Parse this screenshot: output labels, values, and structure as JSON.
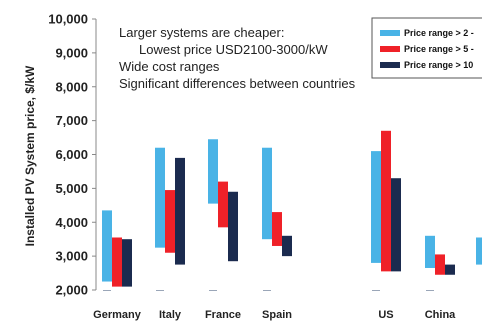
{
  "chart_data": {
    "type": "bar",
    "subtype": "floating-range",
    "ylabel": "Installed PV System price, $/kW",
    "yticks": [
      "2,000",
      "3,000",
      "4,000",
      "5,000",
      "6,000",
      "7,000",
      "8,000",
      "9,000",
      "10,000"
    ],
    "ylim": [
      2000,
      10000
    ],
    "grid": false,
    "legend_position": "top-right",
    "categories": [
      "Germany",
      "Italy",
      "France",
      "Spain",
      "US",
      "China"
    ],
    "series": [
      {
        "name": "Price range > 2 -",
        "color": "#49b3e6",
        "values": [
          {
            "category": "Germany",
            "low": 2250,
            "high": 4350
          },
          {
            "category": "Italy",
            "low": 3250,
            "high": 6200
          },
          {
            "category": "France",
            "low": 4550,
            "high": 6450
          },
          {
            "category": "Spain",
            "low": 3500,
            "high": 6200
          },
          {
            "category": "US",
            "low": 2800,
            "high": 6100
          },
          {
            "category": "China",
            "low": 2650,
            "high": 3600
          }
        ]
      },
      {
        "name": "Price range > 5 -",
        "color": "#ef2128",
        "values": [
          {
            "category": "Germany",
            "low": 2100,
            "high": 3550
          },
          {
            "category": "Italy",
            "low": 3100,
            "high": 4950
          },
          {
            "category": "France",
            "low": 3850,
            "high": 5200
          },
          {
            "category": "Spain",
            "low": 3300,
            "high": 4300
          },
          {
            "category": "US",
            "low": 2550,
            "high": 6700
          },
          {
            "category": "China",
            "low": 2450,
            "high": 3050
          }
        ]
      },
      {
        "name": "Price range > 10",
        "color": "#1b2b4f",
        "values": [
          {
            "category": "Germany",
            "low": 2100,
            "high": 3500
          },
          {
            "category": "Italy",
            "low": 2750,
            "high": 5900
          },
          {
            "category": "France",
            "low": 2850,
            "high": 4900
          },
          {
            "category": "Spain",
            "low": 3000,
            "high": 3600
          },
          {
            "category": "US",
            "low": 2550,
            "high": 5300
          },
          {
            "category": "China",
            "low": 2450,
            "high": 2750
          }
        ]
      }
    ],
    "edge_clipped_bar": {
      "color": "#49b3e6",
      "low": 2750,
      "high": 3550
    },
    "annotations": [
      "Larger systems are cheaper:",
      "Lowest price USD2100-3000/kW",
      "Wide cost ranges",
      "Significant differences between countries"
    ]
  }
}
